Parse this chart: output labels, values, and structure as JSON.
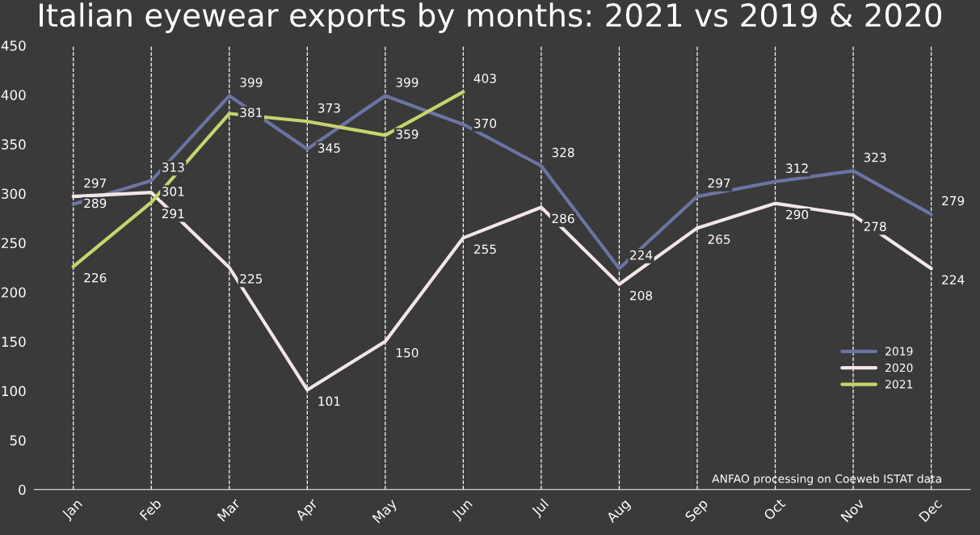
{
  "chart_data": {
    "type": "line",
    "title": "Italian eyewear exports by months: 2021 vs 2019 & 2020",
    "categories": [
      "Jan",
      "Feb",
      "Mar",
      "Apr",
      "May",
      "Jun",
      "Jul",
      "Aug",
      "Sep",
      "Oct",
      "Nov",
      "Dec"
    ],
    "series": [
      {
        "name": "2019",
        "color": "#6b74a3",
        "values": [
          289,
          313,
          399,
          345,
          399,
          370,
          328,
          224,
          297,
          312,
          323,
          279
        ]
      },
      {
        "name": "2020",
        "color": "#f2e6e6",
        "values": [
          297,
          301,
          225,
          101,
          150,
          255,
          286,
          208,
          265,
          290,
          278,
          224
        ]
      },
      {
        "name": "2021",
        "color": "#c8d46c",
        "values": [
          226,
          291,
          381,
          373,
          359,
          403,
          null,
          null,
          null,
          null,
          null,
          null
        ]
      }
    ],
    "ylim": [
      0,
      450
    ],
    "yticks": [
      0,
      50,
      100,
      150,
      200,
      250,
      300,
      350,
      400,
      450
    ],
    "grid": "x",
    "legend": "bottom right",
    "marker": "none",
    "line_style": "solid",
    "data_labels": true,
    "annotations": [
      "ANFAO processing on Coeweb ISTAT data"
    ]
  }
}
